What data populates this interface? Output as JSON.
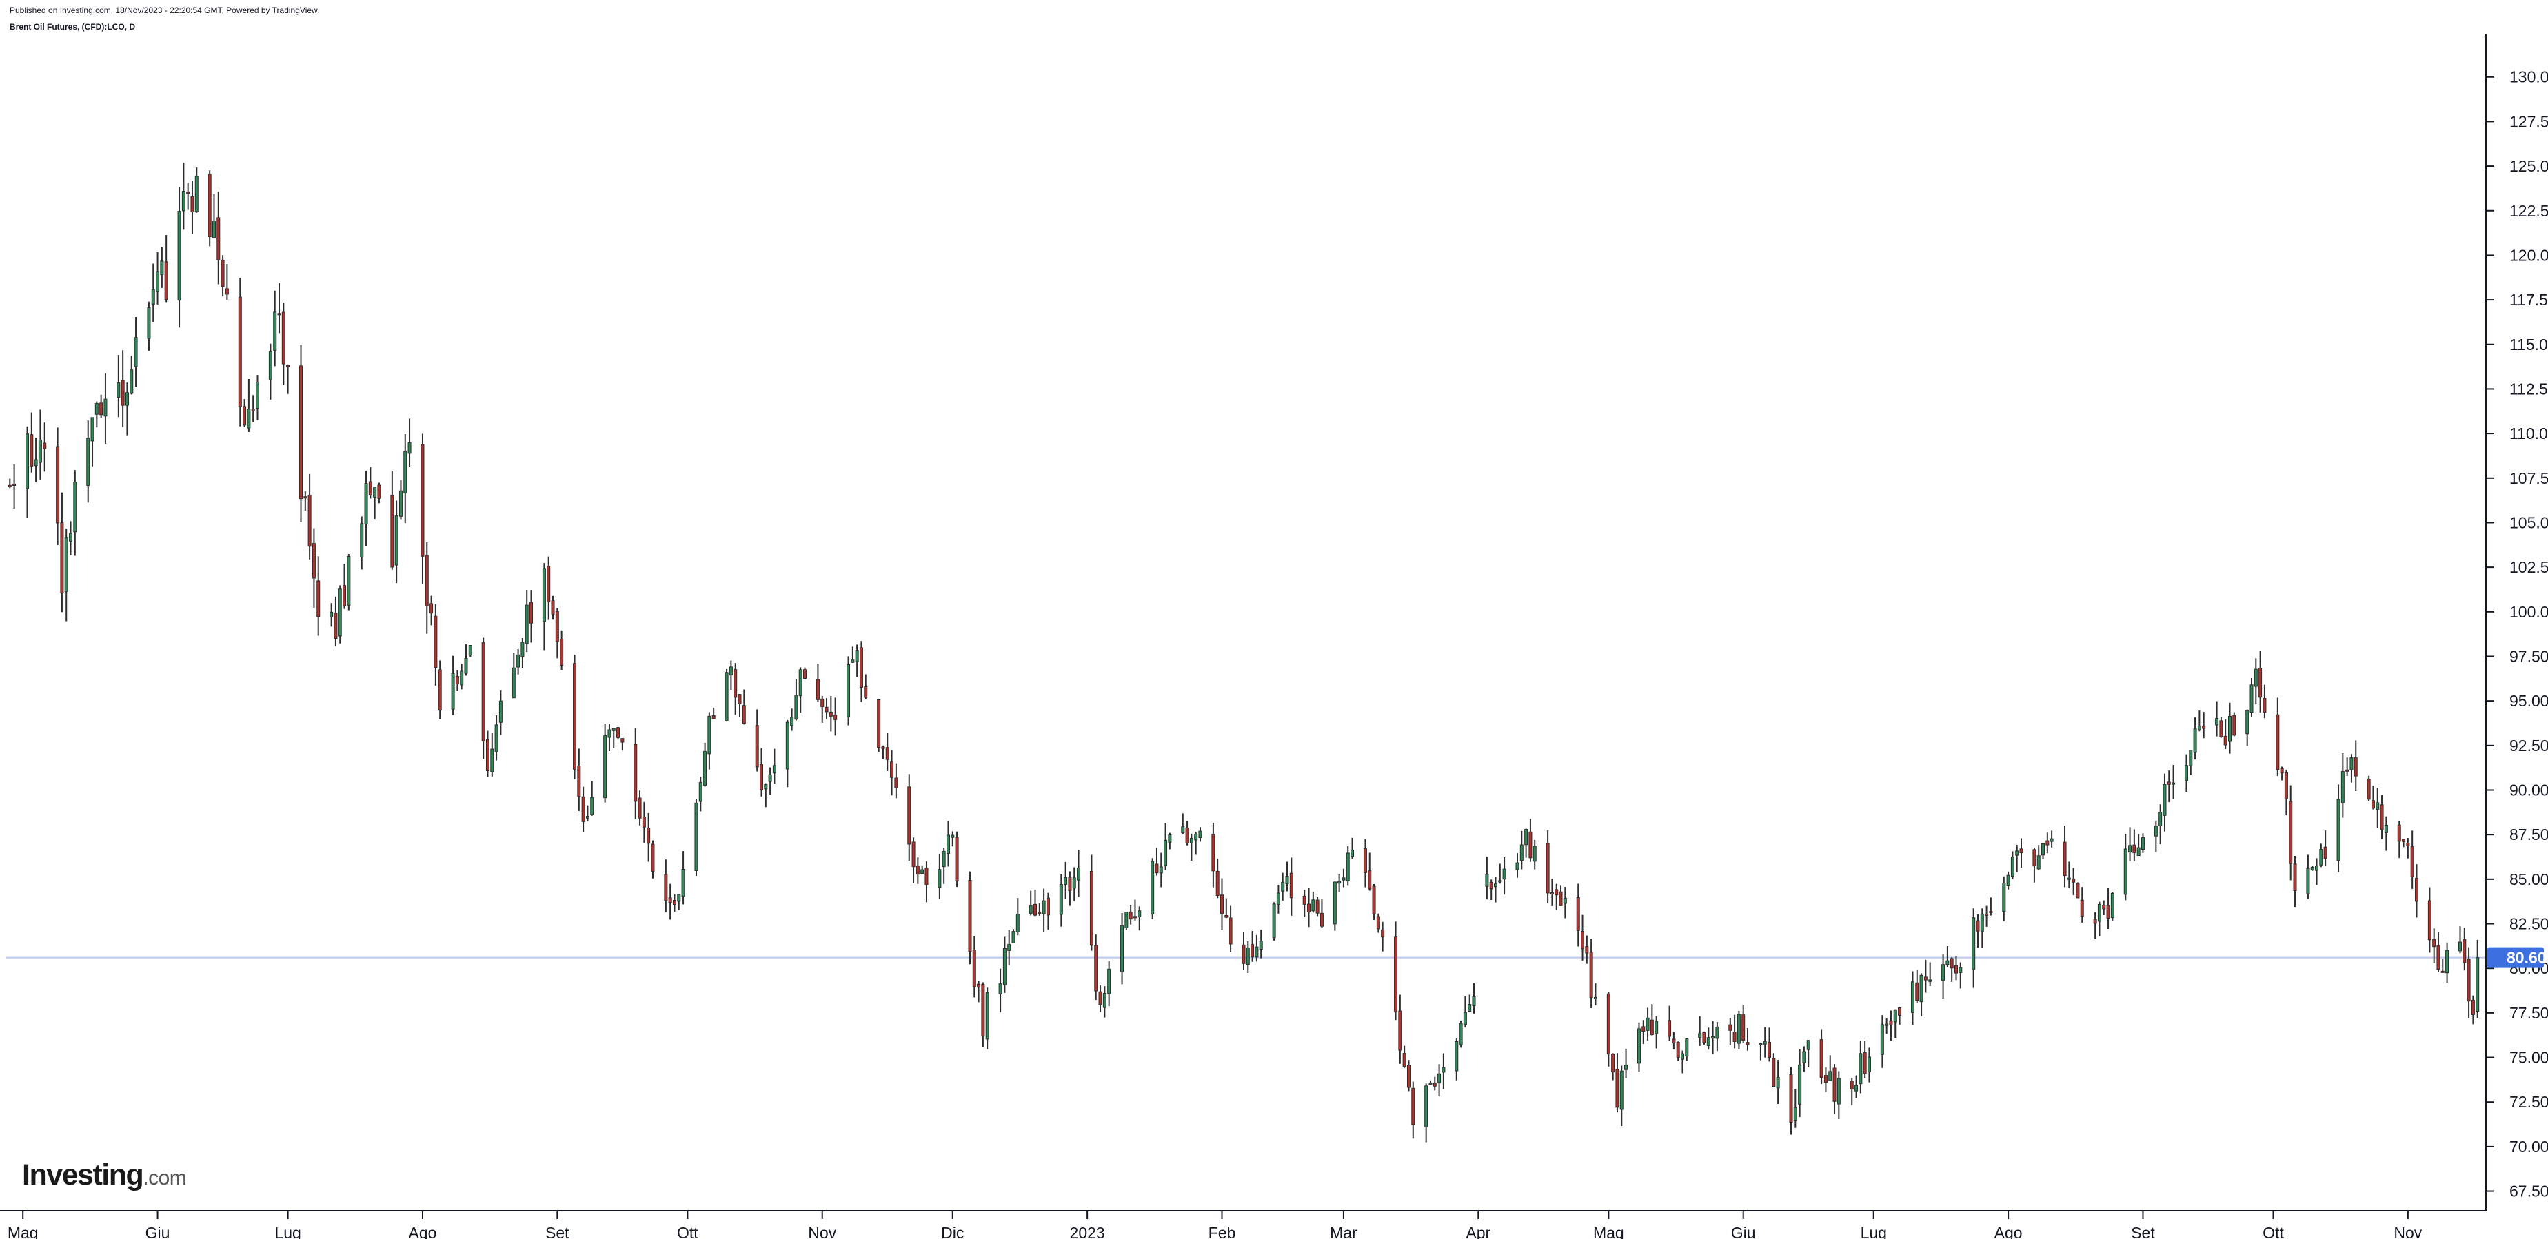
{
  "header": {
    "published": "Published on Investing.com, 18/Nov/2023 - 22:20:54 GMT, Powered by TradingView.",
    "symbol": "Brent Oil Futures, (CFD):LCO, D"
  },
  "logo": {
    "brand": "Investing",
    "suffix": ".com"
  },
  "colors": {
    "up": "#2e8b57",
    "down": "#b5322c",
    "wick": "#2d2d2d",
    "price_line": "#b8c8f0",
    "price_badge": "#3d6fe0",
    "axis": "#131722"
  },
  "chart_data": {
    "type": "candlestick",
    "title": "",
    "xlabel": "",
    "ylabel": "",
    "ylim": [
      66.4,
      132.0
    ],
    "y_ticks": [
      "67.50",
      "70.00",
      "72.50",
      "75.00",
      "77.50",
      "80.00",
      "82.50",
      "85.00",
      "87.50",
      "90.00",
      "92.50",
      "95.00",
      "97.50",
      "100.00",
      "102.50",
      "105.00",
      "107.50",
      "110.00",
      "112.50",
      "115.00",
      "117.50",
      "120.00",
      "122.50",
      "125.00",
      "127.50",
      "130.00"
    ],
    "x_ticks": [
      "Mag",
      "Giu",
      "Lug",
      "Ago",
      "Set",
      "Ott",
      "Nov",
      "Dic",
      "2023",
      "Feb",
      "Mar",
      "Apr",
      "Mag",
      "Giu",
      "Lug",
      "Ago",
      "Set",
      "Ott",
      "Nov"
    ],
    "last_price": "80.60",
    "last_value": 80.6,
    "anchors": [
      {
        "date": "2022-04-28",
        "value": 107
      },
      {
        "date": "2022-05-05",
        "value": 110
      },
      {
        "date": "2022-05-10",
        "value": 102
      },
      {
        "date": "2022-05-17",
        "value": 112
      },
      {
        "date": "2022-05-24",
        "value": 113
      },
      {
        "date": "2022-06-03",
        "value": 119
      },
      {
        "date": "2022-06-08",
        "value": 124
      },
      {
        "date": "2022-06-14",
        "value": 121
      },
      {
        "date": "2022-06-22",
        "value": 110
      },
      {
        "date": "2022-06-29",
        "value": 117
      },
      {
        "date": "2022-07-07",
        "value": 101
      },
      {
        "date": "2022-07-12",
        "value": 99
      },
      {
        "date": "2022-07-19",
        "value": 107
      },
      {
        "date": "2022-07-25",
        "value": 104
      },
      {
        "date": "2022-07-29",
        "value": 110
      },
      {
        "date": "2022-08-05",
        "value": 95
      },
      {
        "date": "2022-08-12",
        "value": 98
      },
      {
        "date": "2022-08-16",
        "value": 92
      },
      {
        "date": "2022-08-29",
        "value": 103
      },
      {
        "date": "2022-09-07",
        "value": 88
      },
      {
        "date": "2022-09-14",
        "value": 94
      },
      {
        "date": "2022-09-23",
        "value": 86
      },
      {
        "date": "2022-09-28",
        "value": 83
      },
      {
        "date": "2022-10-06",
        "value": 94
      },
      {
        "date": "2022-10-11",
        "value": 97
      },
      {
        "date": "2022-10-18",
        "value": 90
      },
      {
        "date": "2022-10-27",
        "value": 96
      },
      {
        "date": "2022-11-03",
        "value": 94
      },
      {
        "date": "2022-11-08",
        "value": 98
      },
      {
        "date": "2022-11-14",
        "value": 93
      },
      {
        "date": "2022-11-23",
        "value": 85
      },
      {
        "date": "2022-12-01",
        "value": 87
      },
      {
        "date": "2022-12-08",
        "value": 77
      },
      {
        "date": "2022-12-15",
        "value": 82
      },
      {
        "date": "2022-12-30",
        "value": 85
      },
      {
        "date": "2023-01-04",
        "value": 78
      },
      {
        "date": "2023-01-11",
        "value": 83
      },
      {
        "date": "2023-01-20",
        "value": 87
      },
      {
        "date": "2023-01-26",
        "value": 88
      },
      {
        "date": "2023-02-06",
        "value": 80
      },
      {
        "date": "2023-02-15",
        "value": 85
      },
      {
        "date": "2023-02-24",
        "value": 83
      },
      {
        "date": "2023-03-03",
        "value": 86
      },
      {
        "date": "2023-03-07",
        "value": 85
      },
      {
        "date": "2023-03-17",
        "value": 72
      },
      {
        "date": "2023-03-24",
        "value": 75
      },
      {
        "date": "2023-03-31",
        "value": 79
      },
      {
        "date": "2023-04-03",
        "value": 85
      },
      {
        "date": "2023-04-12",
        "value": 87
      },
      {
        "date": "2023-04-24",
        "value": 82
      },
      {
        "date": "2023-05-03",
        "value": 73
      },
      {
        "date": "2023-05-10",
        "value": 77
      },
      {
        "date": "2023-05-18",
        "value": 75
      },
      {
        "date": "2023-05-26",
        "value": 77
      },
      {
        "date": "2023-06-05",
        "value": 76
      },
      {
        "date": "2023-06-12",
        "value": 72
      },
      {
        "date": "2023-06-16",
        "value": 76
      },
      {
        "date": "2023-06-23",
        "value": 73
      },
      {
        "date": "2023-06-30",
        "value": 75
      },
      {
        "date": "2023-07-06",
        "value": 77
      },
      {
        "date": "2023-07-11",
        "value": 79
      },
      {
        "date": "2023-07-20",
        "value": 80
      },
      {
        "date": "2023-07-26",
        "value": 83
      },
      {
        "date": "2023-08-04",
        "value": 86
      },
      {
        "date": "2023-08-10",
        "value": 87
      },
      {
        "date": "2023-08-17",
        "value": 84
      },
      {
        "date": "2023-08-23",
        "value": 83
      },
      {
        "date": "2023-09-01",
        "value": 88
      },
      {
        "date": "2023-09-08",
        "value": 90
      },
      {
        "date": "2023-09-14",
        "value": 94
      },
      {
        "date": "2023-09-20",
        "value": 93
      },
      {
        "date": "2023-09-27",
        "value": 96
      },
      {
        "date": "2023-10-03",
        "value": 91
      },
      {
        "date": "2023-10-06",
        "value": 84
      },
      {
        "date": "2023-10-12",
        "value": 86
      },
      {
        "date": "2023-10-19",
        "value": 92
      },
      {
        "date": "2023-10-23",
        "value": 89
      },
      {
        "date": "2023-10-31",
        "value": 87
      },
      {
        "date": "2023-11-03",
        "value": 84
      },
      {
        "date": "2023-11-08",
        "value": 80
      },
      {
        "date": "2023-11-13",
        "value": 82
      },
      {
        "date": "2023-11-16",
        "value": 77.5
      },
      {
        "date": "2023-11-17",
        "value": 80.6
      }
    ],
    "grid": false,
    "legend": "none"
  }
}
